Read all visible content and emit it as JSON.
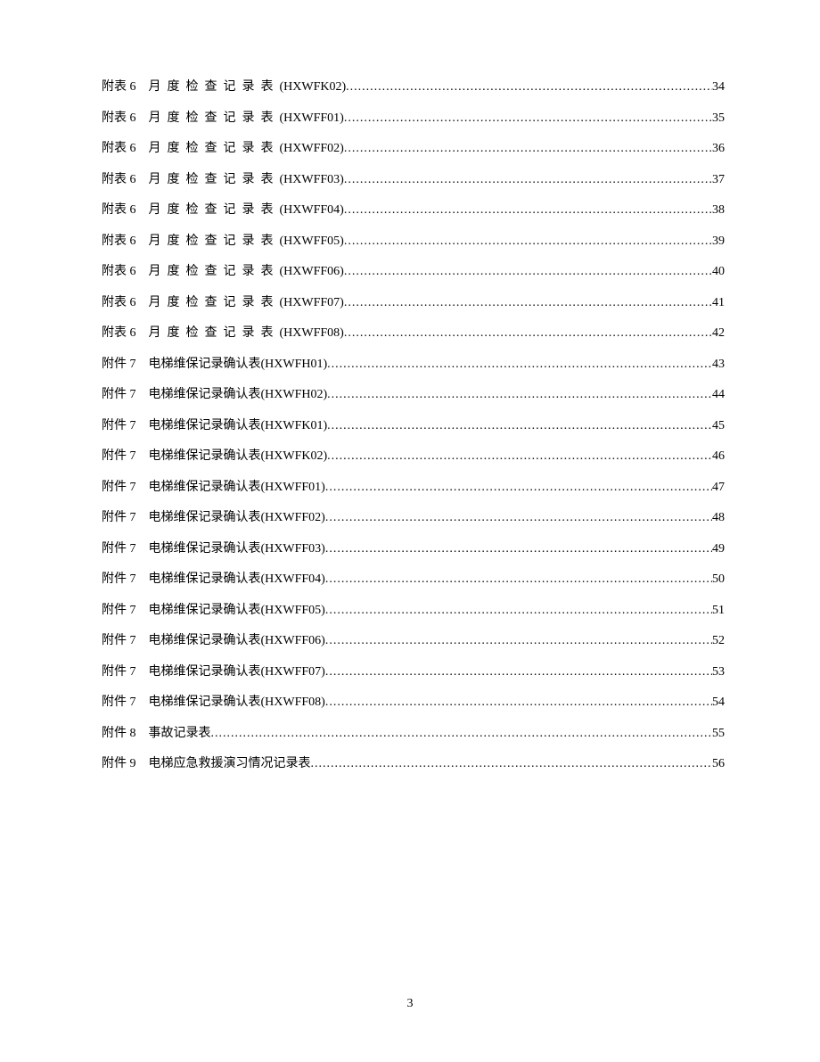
{
  "page_number": "3",
  "text_color": "#000000",
  "background_color": "#ffffff",
  "font_size": 14,
  "line_spacing": 14.5,
  "entries": [
    {
      "prefix": "附表 6",
      "title": "月度检查记录表",
      "code": "(HXWFK02)",
      "page": "34",
      "spaced": true
    },
    {
      "prefix": "附表 6",
      "title": "月度检查记录表",
      "code": "(HXWFF01)",
      "page": "35",
      "spaced": true
    },
    {
      "prefix": "附表 6",
      "title": "月度检查记录表",
      "code": "(HXWFF02)",
      "page": "36",
      "spaced": true
    },
    {
      "prefix": "附表 6",
      "title": "月度检查记录表",
      "code": "(HXWFF03)",
      "page": "37",
      "spaced": true
    },
    {
      "prefix": "附表 6",
      "title": "月度检查记录表",
      "code": "(HXWFF04)",
      "page": "38",
      "spaced": true
    },
    {
      "prefix": "附表 6",
      "title": "月度检查记录表",
      "code": "(HXWFF05)",
      "page": "39",
      "spaced": true
    },
    {
      "prefix": "附表 6",
      "title": "月度检查记录表",
      "code": "(HXWFF06)",
      "page": "40",
      "spaced": true
    },
    {
      "prefix": "附表 6",
      "title": "月度检查记录表",
      "code": "(HXWFF07)",
      "page": "41",
      "spaced": true
    },
    {
      "prefix": "附表 6",
      "title": "月度检查记录表",
      "code": "(HXWFF08)",
      "page": "42",
      "spaced": true
    },
    {
      "prefix": "附件 7",
      "title": "电梯维保记录确认表",
      "code": "(HXWFH01)",
      "page": "43",
      "spaced": false
    },
    {
      "prefix": "附件 7",
      "title": "电梯维保记录确认表",
      "code": "(HXWFH02)",
      "page": "44",
      "spaced": false
    },
    {
      "prefix": "附件 7",
      "title": "电梯维保记录确认表",
      "code": "(HXWFK01)",
      "page": "45",
      "spaced": false
    },
    {
      "prefix": "附件 7",
      "title": "电梯维保记录确认表",
      "code": "(HXWFK02)",
      "page": "46",
      "spaced": false
    },
    {
      "prefix": "附件 7",
      "title": "电梯维保记录确认表",
      "code": "(HXWFF01)",
      "page": "47",
      "spaced": false
    },
    {
      "prefix": "附件 7",
      "title": "电梯维保记录确认表",
      "code": "(HXWFF02)",
      "page": "48",
      "spaced": false
    },
    {
      "prefix": "附件 7",
      "title": "电梯维保记录确认表",
      "code": "(HXWFF03)",
      "page": "49",
      "spaced": false
    },
    {
      "prefix": "附件 7",
      "title": "电梯维保记录确认表",
      "code": "(HXWFF04)",
      "page": "50",
      "spaced": false
    },
    {
      "prefix": "附件 7",
      "title": "电梯维保记录确认表",
      "code": "(HXWFF05)",
      "page": "51",
      "spaced": false
    },
    {
      "prefix": "附件 7",
      "title": "电梯维保记录确认表",
      "code": "(HXWFF06)",
      "page": "52",
      "spaced": false
    },
    {
      "prefix": "附件 7",
      "title": "电梯维保记录确认表",
      "code": "(HXWFF07)",
      "page": "53",
      "spaced": false
    },
    {
      "prefix": "附件 7",
      "title": "电梯维保记录确认表",
      "code": "(HXWFF08)",
      "page": "54",
      "spaced": false
    },
    {
      "prefix": "附件 8",
      "title": "事故记录表",
      "code": "",
      "page": "55",
      "spaced": false
    },
    {
      "prefix": "附件 9",
      "title": "电梯应急救援演习情况记录表",
      "code": "",
      "page": "56",
      "spaced": false
    }
  ]
}
